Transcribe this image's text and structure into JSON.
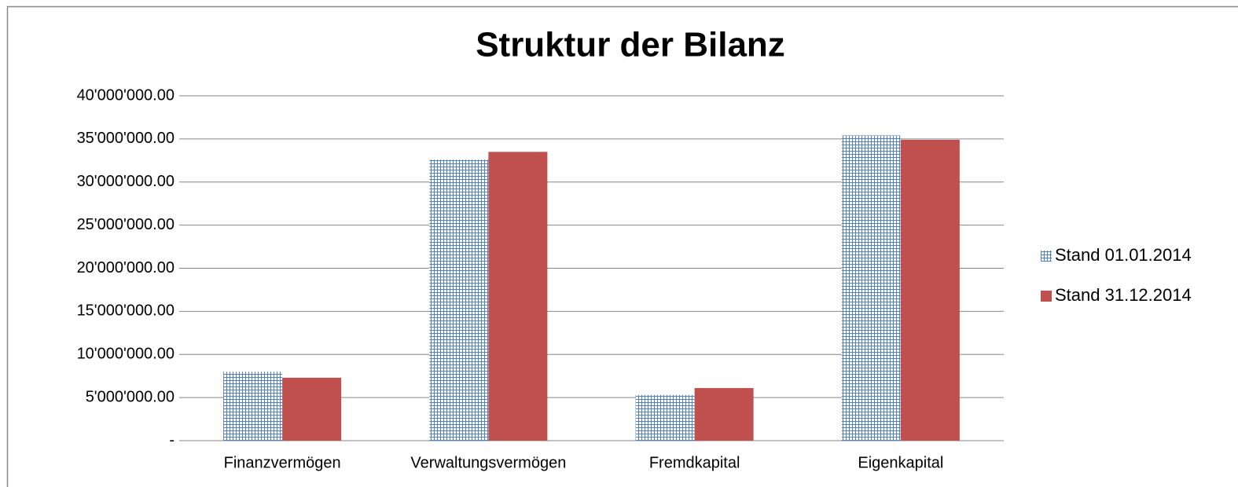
{
  "chart_data": {
    "type": "bar",
    "title": "Struktur der Bilanz",
    "categories": [
      "Finanzvermögen",
      "Verwaltungsvermögen",
      "Fremdkapital",
      "Eigenkapital"
    ],
    "series": [
      {
        "name": "Stand 01.01.2014",
        "color": "#4f81bd",
        "fill": "grid",
        "values": [
          8000000,
          32600000,
          5300000,
          35400000
        ]
      },
      {
        "name": "Stand 31.12.2014",
        "color": "#c0504d",
        "fill": "solid",
        "values": [
          7300000,
          33500000,
          6100000,
          34900000
        ]
      }
    ],
    "ylim": [
      0,
      40000000
    ],
    "yticks": [
      {
        "value": 0,
        "label": "-"
      },
      {
        "value": 5000000,
        "label": "5'000'000.00"
      },
      {
        "value": 10000000,
        "label": "10'000'000.00"
      },
      {
        "value": 15000000,
        "label": "15'000'000.00"
      },
      {
        "value": 20000000,
        "label": "20'000'000.00"
      },
      {
        "value": 25000000,
        "label": "25'000'000.00"
      },
      {
        "value": 30000000,
        "label": "30'000'000.00"
      },
      {
        "value": 35000000,
        "label": "35'000'000.00"
      },
      {
        "value": 40000000,
        "label": "40'000'000.00"
      }
    ],
    "grid": true,
    "legend": "right"
  }
}
